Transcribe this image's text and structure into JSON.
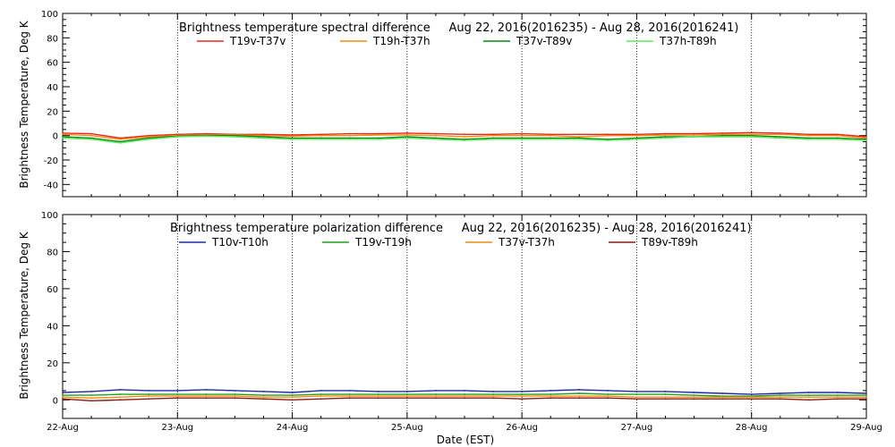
{
  "colors": {
    "T19v-T37v": "#e8281e",
    "T19h-T37h": "#f08a10",
    "T37v-T89v": "#0c8a14",
    "T37h-T89h": "#5fe85f",
    "T10v-T10h": "#1e2aa8",
    "T19v-T19h": "#22a01e",
    "T37v-T37h": "#f08a10",
    "T89v-T89h": "#8c1a10"
  },
  "chart_data": [
    {
      "type": "line",
      "title": "Brightness temperature spectral difference     Aug 22, 2016(2016235) - Aug 28, 2016(2016241)",
      "xlabel": "",
      "ylabel": "Brightness Temperature, Deg K",
      "ylim": [
        -50,
        100
      ],
      "yticks": [
        -40,
        -20,
        0,
        20,
        40,
        60,
        80,
        100
      ],
      "xlim": [
        0,
        7
      ],
      "xtick_labels": [
        "",
        "",
        "",
        "",
        "",
        "",
        "",
        ""
      ],
      "grid": "vertical dotted at day boundaries",
      "legend_position": "top",
      "x": [
        0,
        0.25,
        0.5,
        0.75,
        1,
        1.25,
        1.5,
        1.75,
        2,
        2.25,
        2.5,
        2.75,
        3,
        3.25,
        3.5,
        3.75,
        4,
        4.25,
        4.5,
        4.75,
        5,
        5.25,
        5.5,
        5.75,
        6,
        6.25,
        6.5,
        6.75,
        7
      ],
      "series": [
        {
          "name": "T19v-T37v",
          "values": [
            2,
            1.5,
            -2,
            0,
            1,
            1.5,
            1,
            1,
            0.5,
            1,
            1.5,
            1.5,
            2,
            1.5,
            1,
            1,
            1.5,
            1,
            1,
            1,
            1,
            1.5,
            1.5,
            2,
            2.5,
            2,
            1,
            1,
            -1
          ]
        },
        {
          "name": "T19h-T37h",
          "values": [
            1,
            0,
            -3,
            -1,
            0,
            0.5,
            0.5,
            0,
            -0.5,
            0,
            0,
            0.5,
            0.5,
            0,
            -1,
            0,
            0,
            0,
            -1,
            0,
            0,
            0.5,
            0.5,
            1,
            1,
            1,
            0,
            0,
            -2
          ]
        },
        {
          "name": "T37v-T89v",
          "values": [
            -1,
            -2,
            -5,
            -2,
            -0.5,
            0,
            0,
            -1,
            -2,
            -2,
            -2,
            -2,
            -1,
            -2,
            -3,
            -2,
            -2,
            -2,
            -2,
            -3,
            -2,
            -1,
            -1,
            0,
            0,
            -1,
            -2,
            -2,
            -3
          ]
        },
        {
          "name": "T37h-T89h",
          "values": [
            -2,
            -3,
            -6,
            -3,
            -1,
            -0.5,
            -1,
            -2,
            -3,
            -3,
            -3,
            -3,
            -2,
            -3,
            -4,
            -3,
            -3,
            -3,
            -3,
            -4,
            -3,
            -2,
            -1,
            -1,
            -1,
            -2,
            -3,
            -3,
            -4
          ]
        }
      ]
    },
    {
      "type": "line",
      "title": "Brightness temperature polarization difference     Aug 22, 2016(2016235) - Aug 28, 2016(2016241)",
      "xlabel": "Date (EST)",
      "ylabel": "Brightness Temperature, Deg K",
      "ylim": [
        -10,
        100
      ],
      "yticks": [
        0,
        20,
        40,
        60,
        80,
        100
      ],
      "xlim": [
        0,
        7
      ],
      "xtick_labels": [
        "22-Aug",
        "23-Aug",
        "24-Aug",
        "25-Aug",
        "26-Aug",
        "27-Aug",
        "28-Aug",
        "29-Aug"
      ],
      "grid": "vertical dotted at day boundaries",
      "legend_position": "top",
      "x": [
        0,
        0.25,
        0.5,
        0.75,
        1,
        1.25,
        1.5,
        1.75,
        2,
        2.25,
        2.5,
        2.75,
        3,
        3.25,
        3.5,
        3.75,
        4,
        4.25,
        4.5,
        4.75,
        5,
        5.25,
        5.5,
        5.75,
        6,
        6.25,
        6.5,
        6.75,
        7
      ],
      "series": [
        {
          "name": "T10v-T10h",
          "values": [
            4,
            4.5,
            5.5,
            5,
            5,
            5.5,
            5,
            4.5,
            4,
            5,
            5,
            4.5,
            4.5,
            5,
            5,
            4.5,
            4.5,
            5,
            5.5,
            5,
            4.5,
            4.5,
            4,
            3.5,
            3,
            3.5,
            4,
            4,
            3.5
          ]
        },
        {
          "name": "T19v-T19h",
          "values": [
            2.5,
            2.5,
            3,
            3,
            3,
            3,
            3,
            2.5,
            2.5,
            3,
            3,
            3,
            3,
            3,
            3,
            3,
            3,
            3,
            3.5,
            3,
            3,
            3,
            2.5,
            2,
            2,
            2.5,
            2.5,
            2.5,
            2.5
          ]
        },
        {
          "name": "T37v-T37h",
          "values": [
            1.5,
            1,
            1.5,
            2,
            2,
            2,
            2,
            1.5,
            1.5,
            2,
            2,
            2,
            2,
            2,
            2,
            2,
            2,
            2,
            2,
            2,
            1.5,
            1.5,
            1.5,
            1.5,
            1.5,
            1.5,
            1.5,
            1.5,
            1.5
          ]
        },
        {
          "name": "T89v-T89h",
          "values": [
            0.5,
            -0.5,
            0,
            0.5,
            1,
            1,
            1,
            0.5,
            0,
            0.5,
            1,
            1,
            1,
            1,
            1,
            1,
            0.5,
            1,
            1,
            1,
            0.5,
            0.5,
            0.5,
            0.5,
            0.5,
            0.5,
            0,
            0.5,
            0.5
          ]
        }
      ]
    }
  ]
}
